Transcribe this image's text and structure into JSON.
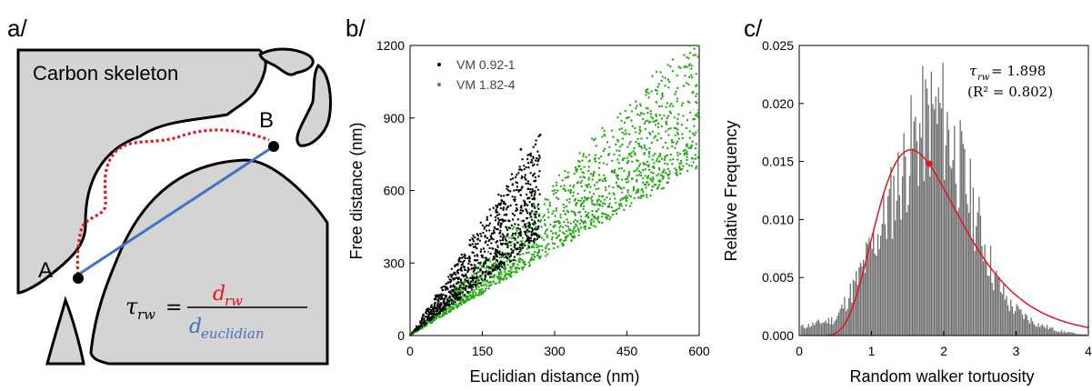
{
  "panels": {
    "a": {
      "label": "a/",
      "region_label": "Carbon skeleton",
      "point_a": "A",
      "point_b": "B",
      "formula": {
        "lhs": "τ",
        "lhs_sub": "rw",
        "eq": "=",
        "num": "d",
        "num_sub": "rw",
        "den": "d",
        "den_sub": "euclidian"
      },
      "colors": {
        "skeleton": "#d4d4d4",
        "walker_path": "#e8141c",
        "euclidean_line": "#4472c4"
      }
    },
    "b": {
      "label": "b/"
    },
    "c": {
      "label": "c/"
    }
  },
  "chart_data": [
    {
      "type": "scatter",
      "xlabel": "Euclidian distance (nm)",
      "ylabel": "Free distance (nm)",
      "xlim": [
        0,
        600
      ],
      "ylim": [
        0,
        1200
      ],
      "xticks": [
        0,
        150,
        300,
        450,
        600
      ],
      "yticks": [
        0,
        300,
        600,
        900,
        1200
      ],
      "legend_position": "top-left",
      "series": [
        {
          "name": "VM 0.92-1",
          "color": "#000000",
          "slope_range": [
            1.5,
            3.1
          ],
          "x_max": 270,
          "sample_points": [
            [
              50,
              100
            ],
            [
              100,
              220
            ],
            [
              150,
              330
            ],
            [
              200,
              500
            ],
            [
              230,
              770
            ],
            [
              260,
              640
            ],
            [
              270,
              830
            ]
          ]
        },
        {
          "name": "VM 1.82-4",
          "color": "#22aa11",
          "slope_range": [
            1.2,
            2.1
          ],
          "x_max": 600,
          "sample_points": [
            [
              100,
              170
            ],
            [
              200,
              340
            ],
            [
              300,
              470
            ],
            [
              400,
              640
            ],
            [
              450,
              900
            ],
            [
              480,
              920
            ],
            [
              600,
              900
            ]
          ]
        }
      ]
    },
    {
      "type": "histogram",
      "xlabel": "Random walker tortuosity",
      "ylabel": "Relative Frequency",
      "xlim": [
        0,
        4
      ],
      "ylim": [
        0,
        0.025
      ],
      "xticks": [
        0,
        1,
        2,
        3,
        4
      ],
      "yticks": [
        0.0,
        0.005,
        0.01,
        0.015,
        0.02,
        0.025
      ],
      "bar_color": "#6d6d6d",
      "fit_color": "#e8141c",
      "annotation": {
        "tau": "τ",
        "tau_sub": "rw",
        "value": "= 1.898",
        "r2": "(R² = 0.802)"
      },
      "fit_peak": {
        "x": 1.55,
        "y": 0.016
      },
      "marker": {
        "x": 1.8,
        "y": 0.0148
      },
      "envelope": [
        [
          0.05,
          0.0008
        ],
        [
          0.5,
          0.0015
        ],
        [
          0.8,
          0.005
        ],
        [
          1.0,
          0.008
        ],
        [
          1.2,
          0.011
        ],
        [
          1.4,
          0.0145
        ],
        [
          1.6,
          0.0178
        ],
        [
          1.8,
          0.0195
        ],
        [
          1.95,
          0.02
        ],
        [
          2.1,
          0.0175
        ],
        [
          2.3,
          0.0135
        ],
        [
          2.5,
          0.0095
        ],
        [
          2.7,
          0.0052
        ],
        [
          2.9,
          0.0028
        ],
        [
          3.1,
          0.0018
        ],
        [
          3.3,
          0.001
        ],
        [
          3.6,
          0.0004
        ],
        [
          3.9,
          0.0001
        ]
      ]
    }
  ]
}
